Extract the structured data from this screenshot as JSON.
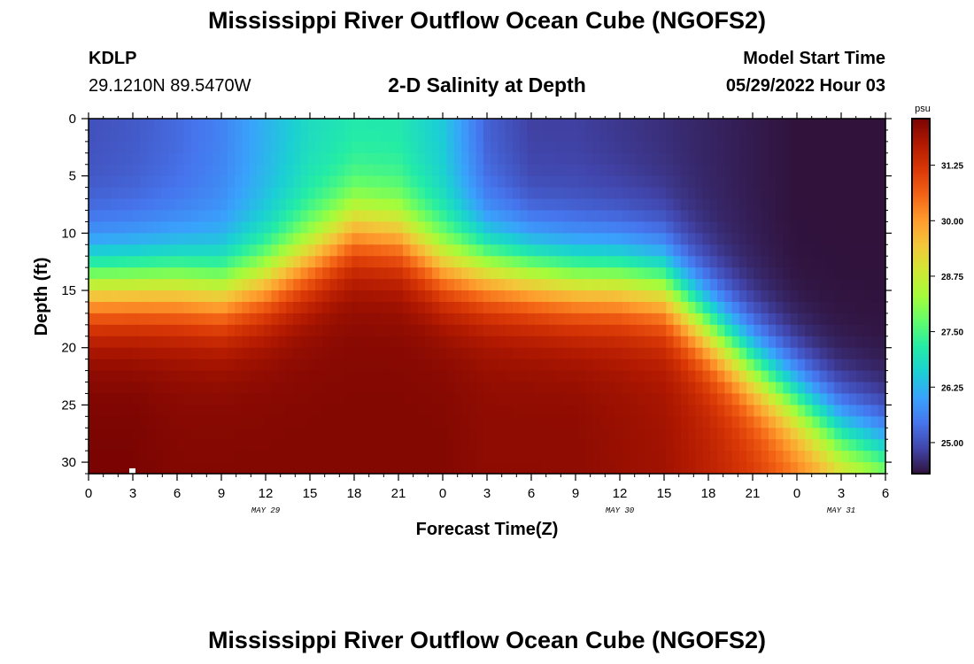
{
  "header": {
    "title": "Mississippi River Outflow Ocean Cube (NGOFS2)",
    "station_id": "KDLP",
    "station_coords": "29.1210N  89.5470W",
    "subtitle": "2-D Salinity at Depth",
    "model_start_label": "Model Start Time",
    "model_start_value": "05/29/2022 Hour 03"
  },
  "footer": {
    "title": "Mississippi River Outflow Ocean Cube (NGOFS2)"
  },
  "colors": {
    "colormap": [
      "#30123b",
      "#4145ab",
      "#4675ed",
      "#39a2fc",
      "#1bcfd4",
      "#24eca6",
      "#61fc6c",
      "#a4fc3b",
      "#d1e834",
      "#f3c63a",
      "#fe9b2d",
      "#f36315",
      "#d93806",
      "#b11901",
      "#7a0402"
    ]
  },
  "chart_data": {
    "type": "heatmap",
    "title": "2-D Salinity at Depth",
    "xlabel": "Forecast Time(Z)",
    "ylabel": "Depth (ft)",
    "x_tick_labels": [
      "0",
      "3",
      "6",
      "9",
      "12",
      "15",
      "18",
      "21",
      "0",
      "3",
      "6",
      "9",
      "12",
      "15",
      "18",
      "21",
      "0",
      "3",
      "6"
    ],
    "x_hours": [
      0,
      3,
      6,
      9,
      12,
      15,
      18,
      21,
      24,
      27,
      30,
      33,
      36,
      39,
      42,
      45,
      48,
      51,
      54
    ],
    "date_labels": [
      {
        "text": "MAY 29",
        "hour": 12
      },
      {
        "text": "MAY 30",
        "hour": 36
      },
      {
        "text": "MAY 31",
        "hour": 51
      }
    ],
    "xlim": [
      0,
      54
    ],
    "y_ticks": [
      0,
      5,
      10,
      15,
      20,
      25,
      30
    ],
    "y_tick_labels": [
      "0",
      "5",
      "10",
      "15",
      "20",
      "25",
      "30"
    ],
    "ylim": [
      0,
      31
    ],
    "y_inverted": true,
    "colorbar": {
      "unit": "psu",
      "tick_labels": [
        "31.25",
        "30.00",
        "28.75",
        "27.50",
        "26.25",
        "25.00"
      ],
      "tick_values": [
        31.25,
        30.0,
        28.75,
        27.5,
        26.25,
        25.0
      ],
      "range": [
        24.3,
        32.3
      ]
    },
    "field_description": {
      "hours": [
        0,
        3,
        6,
        9,
        12,
        15,
        18,
        21,
        24,
        27,
        30,
        33,
        36,
        39,
        42,
        45,
        48,
        51,
        54
      ],
      "surface_salinity": [
        25.0,
        25.1,
        25.3,
        25.6,
        26.2,
        26.8,
        27.0,
        27.0,
        26.5,
        25.2,
        24.8,
        24.8,
        24.7,
        24.6,
        24.5,
        24.4,
        24.3,
        24.3,
        24.3
      ],
      "halocline_depth_ft": [
        14.5,
        14.5,
        14.5,
        15.0,
        14.0,
        12.0,
        9.5,
        10.0,
        12.5,
        13.0,
        13.5,
        14.0,
        14.0,
        14.5,
        18.0,
        21.5,
        24.5,
        27.5,
        29.0
      ],
      "bottom_salinity": [
        32.3,
        32.3,
        32.2,
        32.2,
        32.2,
        32.2,
        32.2,
        32.2,
        32.2,
        32.1,
        32.1,
        32.1,
        32.0,
        31.9,
        31.6,
        31.2,
        30.6,
        30.0,
        29.5
      ]
    }
  }
}
